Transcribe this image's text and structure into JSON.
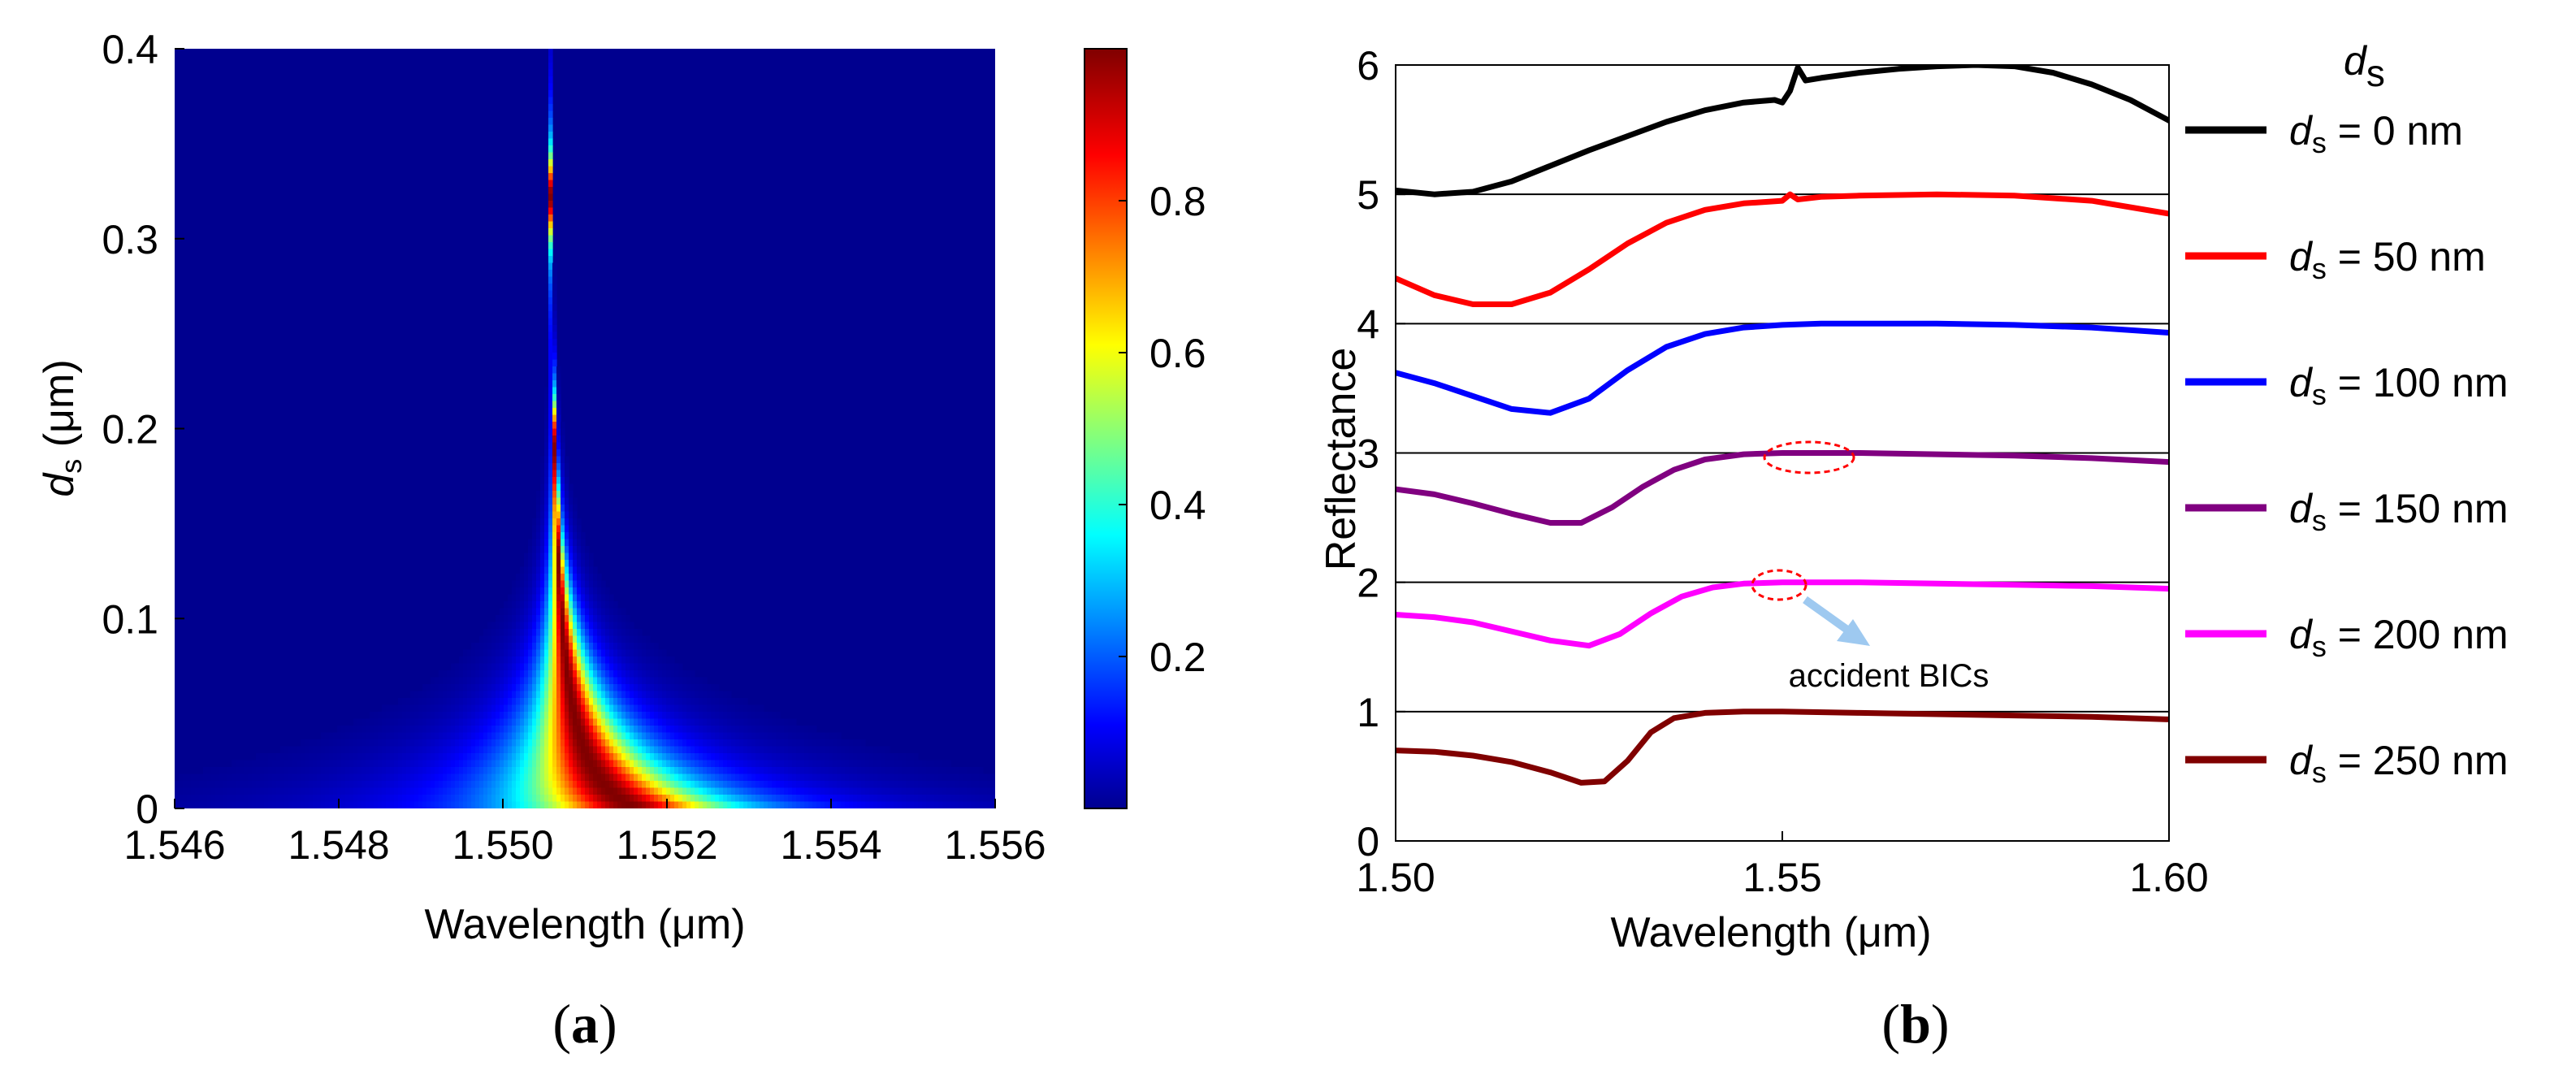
{
  "chart_data": [
    {
      "type": "heatmap",
      "panel_label": {
        "open": "(",
        "letter": "a",
        "close": ")"
      },
      "xlabel": "Wavelength (μm)",
      "ylabel": {
        "main": "d",
        "sub": "s",
        "rest": " (μm)"
      },
      "xlim": [
        1.546,
        1.556
      ],
      "ylim": [
        0,
        0.4
      ],
      "xticks": [
        "1.546",
        "1.548",
        "1.550",
        "1.552",
        "1.554",
        "1.556"
      ],
      "xtick_values": [
        1.546,
        1.548,
        1.55,
        1.552,
        1.554,
        1.556
      ],
      "yticks": [
        "0",
        "0.1",
        "0.2",
        "0.3",
        "0.4"
      ],
      "ytick_values": [
        0,
        0.1,
        0.2,
        0.3,
        0.4
      ],
      "colorbar": {
        "colormap": "jet",
        "range": [
          0,
          1
        ],
        "ticks": [
          "0.2",
          "0.4",
          "0.6",
          "0.8"
        ],
        "tick_values": [
          0.2,
          0.4,
          0.6,
          0.8
        ]
      },
      "resonance": {
        "center_at_ds_zero": 1.5516,
        "asymptote": 1.5505,
        "width_at_ds_zero": 0.00105,
        "value_field": "reflectance",
        "description_points": [
          {
            "ds": 0.0,
            "center": 1.5516
          },
          {
            "ds": 0.05,
            "center": 1.5508
          },
          {
            "ds": 0.1,
            "center": 1.5506
          },
          {
            "ds": 0.2,
            "center": 1.5505
          },
          {
            "ds": 0.3,
            "center": 1.5505
          }
        ]
      }
    },
    {
      "type": "line",
      "panel_label": {
        "open": "(",
        "letter": "b",
        "close": ")"
      },
      "xlabel": "Wavelength (μm)",
      "ylabel": "Reflectance",
      "xlim": [
        1.5,
        1.6
      ],
      "ylim": [
        0,
        6
      ],
      "xticks": [
        "1.50",
        "1.55",
        "1.60"
      ],
      "xtick_values": [
        1.5,
        1.55,
        1.6
      ],
      "yticks": [
        "0",
        "1",
        "2",
        "3",
        "4",
        "5",
        "6"
      ],
      "ytick_values": [
        0,
        1,
        2,
        3,
        4,
        5,
        6
      ],
      "legend_title": {
        "main": "d",
        "sub": "s"
      },
      "annotation": "accident BICs",
      "series": [
        {
          "name": "d_s = 0 nm",
          "label_d": "d",
          "label_s": "s",
          "label_rest": " =  0  nm",
          "color": "#000000",
          "offset": 5,
          "x": [
            1.5,
            1.505,
            1.51,
            1.515,
            1.52,
            1.525,
            1.53,
            1.535,
            1.54,
            1.545,
            1.549,
            1.55,
            1.551,
            1.552,
            1.553,
            1.555,
            1.56,
            1.565,
            1.57,
            1.575,
            1.58,
            1.585,
            1.59,
            1.595,
            1.6
          ],
          "y": [
            5.03,
            5.0,
            5.02,
            5.1,
            5.22,
            5.34,
            5.45,
            5.56,
            5.65,
            5.71,
            5.73,
            5.71,
            5.8,
            5.98,
            5.88,
            5.9,
            5.94,
            5.97,
            5.99,
            6.0,
            5.99,
            5.94,
            5.85,
            5.73,
            5.57
          ]
        },
        {
          "name": "d_s = 50 nm",
          "label_d": "d",
          "label_s": "s",
          "label_rest": " =  50  nm",
          "color": "#ff0000",
          "offset": 4,
          "x": [
            1.5,
            1.505,
            1.51,
            1.515,
            1.52,
            1.525,
            1.53,
            1.535,
            1.54,
            1.545,
            1.55,
            1.551,
            1.552,
            1.555,
            1.56,
            1.57,
            1.58,
            1.59,
            1.6
          ],
          "y": [
            4.35,
            4.22,
            4.15,
            4.15,
            4.24,
            4.42,
            4.62,
            4.78,
            4.88,
            4.93,
            4.95,
            5.0,
            4.96,
            4.98,
            4.99,
            5.0,
            4.99,
            4.95,
            4.85
          ]
        },
        {
          "name": "d_s = 100 nm",
          "label_d": "d",
          "label_s": "s",
          "label_rest": " = 100 nm",
          "color": "#0000ff",
          "offset": 3,
          "x": [
            1.5,
            1.505,
            1.51,
            1.515,
            1.52,
            1.525,
            1.53,
            1.535,
            1.54,
            1.545,
            1.55,
            1.555,
            1.56,
            1.57,
            1.58,
            1.59,
            1.6
          ],
          "y": [
            3.62,
            3.54,
            3.44,
            3.34,
            3.31,
            3.42,
            3.64,
            3.82,
            3.92,
            3.97,
            3.99,
            4.0,
            4.0,
            4.0,
            3.99,
            3.97,
            3.93
          ]
        },
        {
          "name": "d_s = 150 nm",
          "label_d": "d",
          "label_s": "s",
          "label_rest": " = 150 nm",
          "color": "#800080",
          "offset": 2,
          "x": [
            1.5,
            1.505,
            1.51,
            1.515,
            1.52,
            1.524,
            1.528,
            1.532,
            1.536,
            1.54,
            1.545,
            1.55,
            1.555,
            1.56,
            1.57,
            1.58,
            1.59,
            1.6
          ],
          "y": [
            2.72,
            2.68,
            2.61,
            2.53,
            2.46,
            2.46,
            2.58,
            2.74,
            2.87,
            2.95,
            2.99,
            3.0,
            3.0,
            3.0,
            2.99,
            2.98,
            2.96,
            2.93
          ]
        },
        {
          "name": "d_s = 200 nm",
          "label_d": "d",
          "label_s": "s",
          "label_rest": " = 200 nm",
          "color": "#ff00ff",
          "offset": 1,
          "x": [
            1.5,
            1.505,
            1.51,
            1.515,
            1.52,
            1.525,
            1.529,
            1.533,
            1.537,
            1.541,
            1.545,
            1.55,
            1.555,
            1.56,
            1.57,
            1.58,
            1.59,
            1.6
          ],
          "y": [
            1.75,
            1.73,
            1.69,
            1.62,
            1.55,
            1.51,
            1.6,
            1.76,
            1.89,
            1.96,
            1.99,
            2.0,
            2.0,
            2.0,
            1.99,
            1.98,
            1.97,
            1.95
          ]
        },
        {
          "name": "d_s = 250 nm",
          "label_d": "d",
          "label_s": "s",
          "label_rest": " = 250 nm",
          "color": "#800000",
          "offset": 0,
          "x": [
            1.5,
            1.505,
            1.51,
            1.515,
            1.52,
            1.524,
            1.527,
            1.53,
            1.533,
            1.536,
            1.54,
            1.545,
            1.55,
            1.56,
            1.57,
            1.58,
            1.59,
            1.6
          ],
          "y": [
            0.7,
            0.69,
            0.66,
            0.61,
            0.53,
            0.45,
            0.46,
            0.62,
            0.84,
            0.95,
            0.99,
            1.0,
            1.0,
            0.99,
            0.98,
            0.97,
            0.96,
            0.94
          ]
        }
      ]
    }
  ]
}
